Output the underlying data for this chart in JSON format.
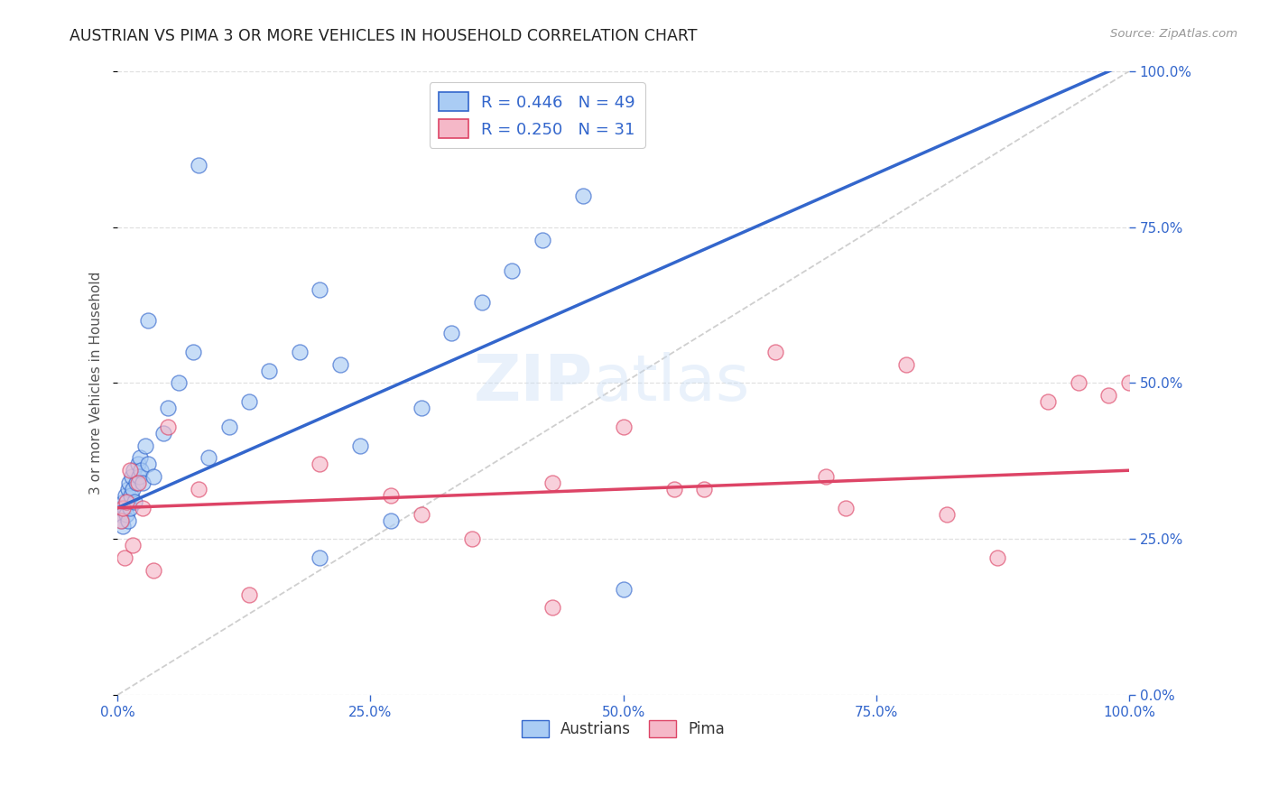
{
  "title": "AUSTRIAN VS PIMA 3 OR MORE VEHICLES IN HOUSEHOLD CORRELATION CHART",
  "source": "Source: ZipAtlas.com",
  "ylabel": "3 or more Vehicles in Household",
  "legend_austrians": "Austrians",
  "legend_pima": "Pima",
  "r_austrians": 0.446,
  "n_austrians": 49,
  "r_pima": 0.25,
  "n_pima": 31,
  "austrians_x": [
    0.2,
    0.3,
    0.4,
    0.5,
    0.6,
    0.7,
    0.8,
    0.9,
    1.0,
    1.0,
    1.1,
    1.2,
    1.3,
    1.4,
    1.5,
    1.6,
    1.7,
    1.8,
    2.0,
    2.1,
    2.2,
    2.3,
    2.5,
    2.7,
    3.0,
    3.5,
    4.5,
    5.0,
    6.0,
    7.5,
    9.0,
    11.0,
    13.0,
    15.0,
    18.0,
    20.0,
    22.0,
    24.0,
    27.0,
    30.0,
    33.0,
    36.0,
    39.0,
    42.0,
    46.0,
    20.0,
    8.0,
    3.0,
    50.0
  ],
  "austrians_y": [
    29.0,
    30.0,
    28.0,
    27.0,
    31.0,
    30.0,
    32.0,
    29.0,
    33.0,
    28.0,
    34.0,
    30.0,
    32.0,
    35.0,
    33.0,
    36.0,
    31.0,
    34.0,
    37.0,
    35.0,
    38.0,
    36.0,
    34.0,
    40.0,
    37.0,
    35.0,
    42.0,
    46.0,
    50.0,
    55.0,
    38.0,
    43.0,
    47.0,
    52.0,
    55.0,
    22.0,
    53.0,
    40.0,
    28.0,
    46.0,
    58.0,
    63.0,
    68.0,
    73.0,
    80.0,
    65.0,
    85.0,
    60.0,
    17.0
  ],
  "pima_x": [
    0.3,
    0.5,
    0.7,
    0.9,
    1.2,
    1.5,
    2.0,
    2.5,
    3.5,
    5.0,
    8.0,
    13.0,
    20.0,
    27.0,
    35.0,
    43.0,
    50.0,
    43.0,
    58.0,
    65.0,
    72.0,
    78.0,
    82.0,
    87.0,
    92.0,
    95.0,
    98.0,
    70.0,
    55.0,
    30.0,
    100.0
  ],
  "pima_y": [
    28.0,
    30.0,
    22.0,
    31.0,
    36.0,
    24.0,
    34.0,
    30.0,
    20.0,
    43.0,
    33.0,
    16.0,
    37.0,
    32.0,
    25.0,
    34.0,
    43.0,
    14.0,
    33.0,
    55.0,
    30.0,
    53.0,
    29.0,
    22.0,
    47.0,
    50.0,
    48.0,
    35.0,
    33.0,
    29.0,
    50.0
  ],
  "color_austrians": "#aaccf4",
  "color_pima": "#f5b8c8",
  "line_color_austrians": "#3366cc",
  "line_color_pima": "#dd4466",
  "line_color_diagonal": "#bbbbbb",
  "bg_color": "#ffffff",
  "grid_color": "#e0e0e0",
  "watermark": "ZIPatlas",
  "xlim": [
    0,
    100
  ],
  "ylim": [
    0,
    100
  ],
  "xticks": [
    0,
    25,
    50,
    75,
    100
  ],
  "yticks": [
    0,
    25,
    50,
    75,
    100
  ],
  "title_color": "#222222",
  "axis_label_color": "#555555",
  "tick_color_right": "#3366cc",
  "tick_color_bottom": "#3366cc"
}
